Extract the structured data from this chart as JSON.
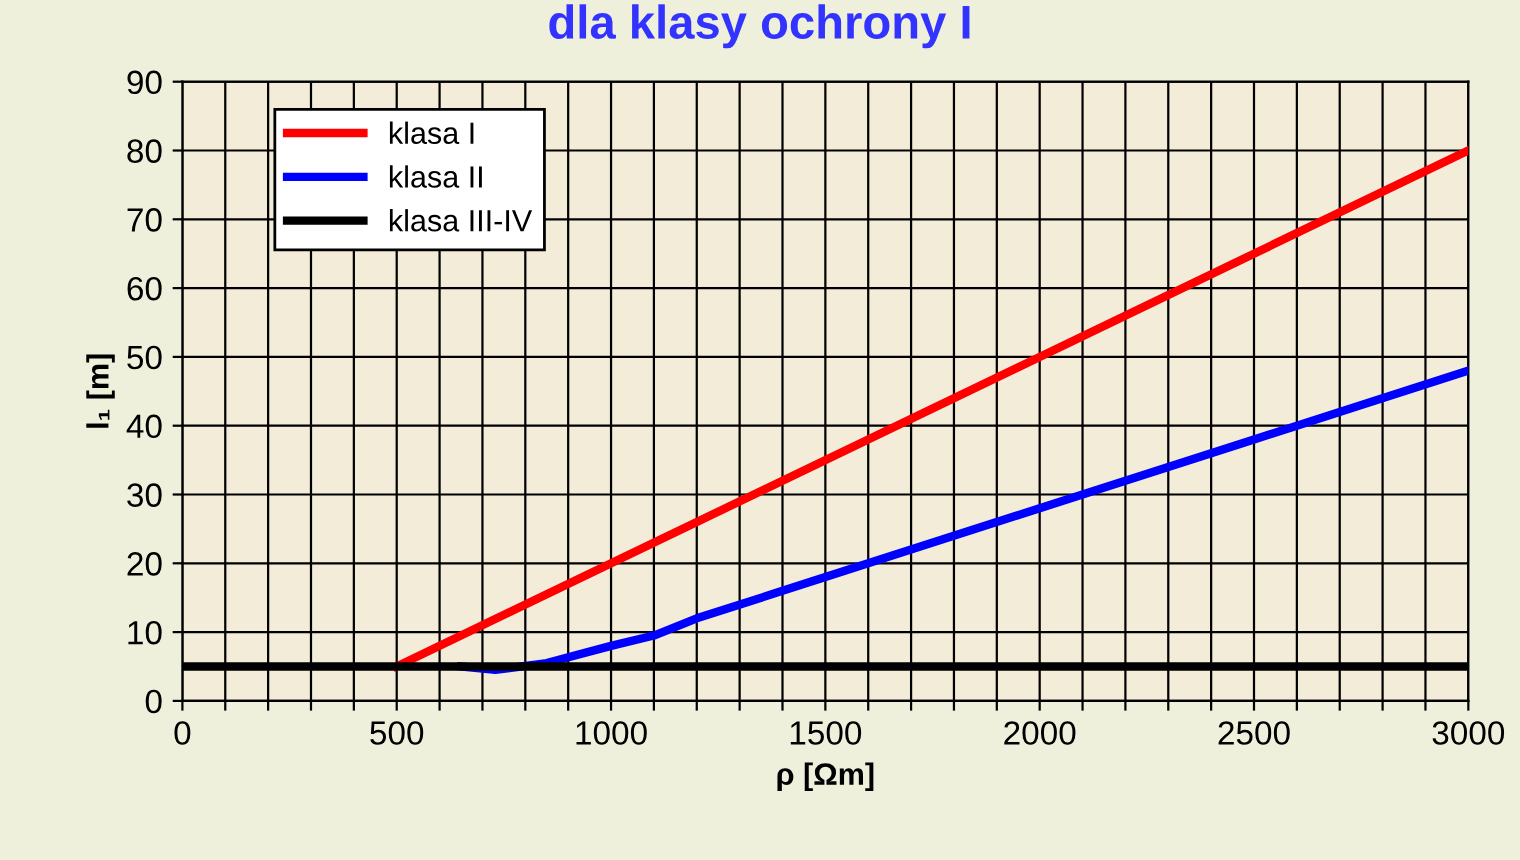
{
  "chart_data": {
    "type": "line",
    "title": "dla klasy ochrony I",
    "xlabel": "ρ [Ωm]",
    "ylabel": "l₁ [m]",
    "series": [
      {
        "name": "klasa I",
        "color": "#ff0000",
        "x": [
          500,
          3000
        ],
        "values": [
          5,
          80
        ]
      },
      {
        "name": "klasa II",
        "color": "#0000ff",
        "x": [
          650,
          730,
          850,
          1000,
          1100,
          1200,
          1400,
          1500,
          2000,
          2500,
          3000
        ],
        "values": [
          5,
          4.5,
          5.5,
          8,
          9.5,
          12,
          16,
          18,
          28,
          38,
          48
        ]
      },
      {
        "name": "klasa III-IV",
        "color": "#000000",
        "x": [
          0,
          3000
        ],
        "values": [
          5,
          5
        ]
      }
    ],
    "xlim": [
      0,
      3000
    ],
    "ylim": [
      0,
      90
    ],
    "xticks": [
      0,
      {
        "value": 100,
        "label": null
      },
      {
        "value": 200,
        "label": null
      },
      {
        "value": 300,
        "label": null
      },
      {
        "value": 400,
        "label": null
      },
      500,
      {
        "value": 600,
        "label": null
      },
      {
        "value": 700,
        "label": null
      },
      {
        "value": 800,
        "label": null
      },
      {
        "value": 900,
        "label": null
      },
      1000,
      {
        "value": 1100,
        "label": null
      },
      {
        "value": 1200,
        "label": null
      },
      {
        "value": 1300,
        "label": null
      },
      {
        "value": 1400,
        "label": null
      },
      1500,
      {
        "value": 1600,
        "label": null
      },
      {
        "value": 1700,
        "label": null
      },
      {
        "value": 1800,
        "label": null
      },
      {
        "value": 1900,
        "label": null
      },
      2000,
      {
        "value": 2100,
        "label": null
      },
      {
        "value": 2200,
        "label": null
      },
      {
        "value": 2300,
        "label": null
      },
      {
        "value": 2400,
        "label": null
      },
      2500,
      {
        "value": 2600,
        "label": null
      },
      {
        "value": 2700,
        "label": null
      },
      {
        "value": 2800,
        "label": null
      },
      {
        "value": 2900,
        "label": null
      },
      3000
    ],
    "yticks": [
      0,
      10,
      20,
      30,
      40,
      50,
      60,
      70,
      80,
      90
    ],
    "grid": true,
    "legend": "top left",
    "marker": "none",
    "line_style": "solid"
  }
}
